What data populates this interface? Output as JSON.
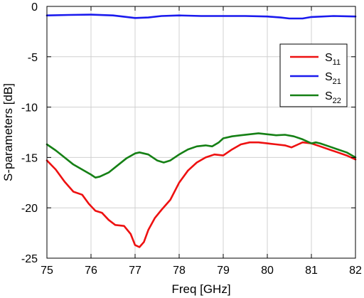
{
  "chart_data": {
    "type": "line",
    "xlabel": "Freq [GHz]",
    "ylabel": "S-parameters [dB]",
    "xlim": [
      75,
      82
    ],
    "ylim": [
      -25,
      0
    ],
    "xticks": [
      "75",
      "76",
      "77",
      "78",
      "79",
      "80",
      "81",
      "82"
    ],
    "yticks": [
      "0",
      "-5",
      "-10",
      "-15",
      "-20",
      "-25"
    ],
    "grid": true,
    "legend_position": "top-right",
    "series": [
      {
        "name": "S",
        "sub": "11",
        "color": "#ee1111",
        "points": [
          [
            75.0,
            -15.3
          ],
          [
            75.2,
            -16.2
          ],
          [
            75.4,
            -17.4
          ],
          [
            75.6,
            -18.4
          ],
          [
            75.8,
            -18.7
          ],
          [
            75.95,
            -19.6
          ],
          [
            76.1,
            -20.3
          ],
          [
            76.25,
            -20.5
          ],
          [
            76.4,
            -21.2
          ],
          [
            76.55,
            -21.7
          ],
          [
            76.75,
            -21.8
          ],
          [
            76.9,
            -22.6
          ],
          [
            77.0,
            -23.7
          ],
          [
            77.1,
            -23.9
          ],
          [
            77.2,
            -23.4
          ],
          [
            77.3,
            -22.2
          ],
          [
            77.45,
            -21.0
          ],
          [
            77.6,
            -20.2
          ],
          [
            77.8,
            -19.2
          ],
          [
            78.0,
            -17.5
          ],
          [
            78.2,
            -16.3
          ],
          [
            78.4,
            -15.5
          ],
          [
            78.6,
            -15.0
          ],
          [
            78.8,
            -14.7
          ],
          [
            79.0,
            -14.8
          ],
          [
            79.2,
            -14.2
          ],
          [
            79.4,
            -13.7
          ],
          [
            79.6,
            -13.5
          ],
          [
            79.8,
            -13.5
          ],
          [
            80.0,
            -13.6
          ],
          [
            80.2,
            -13.7
          ],
          [
            80.4,
            -13.8
          ],
          [
            80.55,
            -14.0
          ],
          [
            80.7,
            -13.7
          ],
          [
            80.8,
            -13.5
          ],
          [
            81.0,
            -13.6
          ],
          [
            81.2,
            -13.9
          ],
          [
            81.4,
            -14.2
          ],
          [
            81.6,
            -14.5
          ],
          [
            81.8,
            -14.8
          ],
          [
            82.0,
            -15.2
          ]
        ]
      },
      {
        "name": "S",
        "sub": "21",
        "color": "#1a1aee",
        "points": [
          [
            75.0,
            -0.9
          ],
          [
            75.5,
            -0.85
          ],
          [
            76.0,
            -0.82
          ],
          [
            76.5,
            -0.9
          ],
          [
            76.9,
            -1.1
          ],
          [
            77.0,
            -1.15
          ],
          [
            77.3,
            -1.1
          ],
          [
            77.6,
            -0.95
          ],
          [
            78.0,
            -0.9
          ],
          [
            78.5,
            -0.95
          ],
          [
            79.0,
            -0.95
          ],
          [
            79.5,
            -0.95
          ],
          [
            80.0,
            -1.0
          ],
          [
            80.3,
            -1.1
          ],
          [
            80.5,
            -1.2
          ],
          [
            80.8,
            -1.2
          ],
          [
            81.0,
            -1.05
          ],
          [
            81.5,
            -0.95
          ],
          [
            82.0,
            -1.0
          ]
        ]
      },
      {
        "name": "S",
        "sub": "22",
        "color": "#158015",
        "points": [
          [
            75.0,
            -13.7
          ],
          [
            75.2,
            -14.3
          ],
          [
            75.4,
            -15.0
          ],
          [
            75.6,
            -15.7
          ],
          [
            75.8,
            -16.2
          ],
          [
            76.0,
            -16.7
          ],
          [
            76.1,
            -17.0
          ],
          [
            76.2,
            -16.9
          ],
          [
            76.4,
            -16.5
          ],
          [
            76.6,
            -15.8
          ],
          [
            76.8,
            -15.1
          ],
          [
            77.0,
            -14.6
          ],
          [
            77.1,
            -14.5
          ],
          [
            77.3,
            -14.7
          ],
          [
            77.5,
            -15.3
          ],
          [
            77.65,
            -15.5
          ],
          [
            77.8,
            -15.3
          ],
          [
            78.0,
            -14.7
          ],
          [
            78.2,
            -14.2
          ],
          [
            78.4,
            -13.9
          ],
          [
            78.6,
            -13.8
          ],
          [
            78.75,
            -13.9
          ],
          [
            78.9,
            -13.5
          ],
          [
            79.0,
            -13.1
          ],
          [
            79.2,
            -12.9
          ],
          [
            79.4,
            -12.8
          ],
          [
            79.6,
            -12.7
          ],
          [
            79.8,
            -12.6
          ],
          [
            80.0,
            -12.7
          ],
          [
            80.2,
            -12.8
          ],
          [
            80.4,
            -12.75
          ],
          [
            80.6,
            -12.9
          ],
          [
            80.8,
            -13.2
          ],
          [
            81.0,
            -13.6
          ],
          [
            81.1,
            -13.5
          ],
          [
            81.2,
            -13.6
          ],
          [
            81.4,
            -13.9
          ],
          [
            81.6,
            -14.2
          ],
          [
            81.8,
            -14.5
          ],
          [
            82.0,
            -15.0
          ]
        ]
      }
    ]
  }
}
